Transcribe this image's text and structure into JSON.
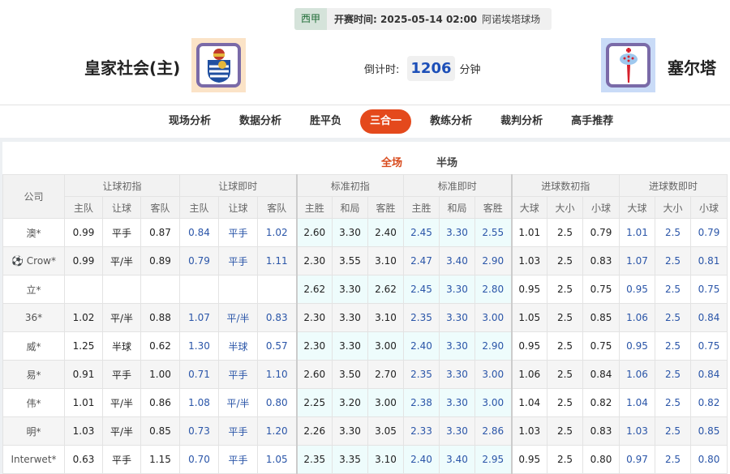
{
  "match": {
    "league": "西甲",
    "kickoff_label": "开赛时间:",
    "kickoff_time": "2025-05-14 02:00",
    "venue": "阿诺埃塔球场",
    "home": "皇家社会(主)",
    "away": "塞尔塔",
    "countdown_label": "倒计时:",
    "countdown_value": "1206",
    "countdown_unit": "分钟"
  },
  "nav": [
    {
      "label": "现场分析"
    },
    {
      "label": "数据分析"
    },
    {
      "label": "胜平负"
    },
    {
      "label": "三合一",
      "active": true
    },
    {
      "label": "教练分析"
    },
    {
      "label": "裁判分析"
    },
    {
      "label": "高手推荐"
    }
  ],
  "subtabs": [
    {
      "label": "全场",
      "active": true
    },
    {
      "label": "半场"
    }
  ],
  "table": {
    "company_header": "公司",
    "groups": [
      "让球初指",
      "让球即时",
      "标准初指",
      "标准即时",
      "进球数初指",
      "进球数即时"
    ],
    "subheaders": [
      "主队",
      "让球",
      "客队",
      "主队",
      "让球",
      "客队",
      "主胜",
      "和局",
      "客胜",
      "主胜",
      "和局",
      "客胜",
      "大球",
      "大小",
      "小球",
      "大球",
      "大小",
      "小球"
    ],
    "rows": [
      {
        "company": "澳*",
        "values": [
          "0.99",
          "平手",
          "0.87",
          "0.84",
          "平手",
          "1.02",
          "2.60",
          "3.30",
          "2.40",
          "2.45",
          "3.30",
          "2.55",
          "1.01",
          "2.5",
          "0.79",
          "1.01",
          "2.5",
          "0.79"
        ]
      },
      {
        "company": "Crow*",
        "icon": "soccer-ball-icon",
        "values": [
          "0.99",
          "平/半",
          "0.89",
          "0.79",
          "平手",
          "1.11",
          "2.30",
          "3.55",
          "3.10",
          "2.47",
          "3.40",
          "2.90",
          "1.03",
          "2.5",
          "0.83",
          "1.07",
          "2.5",
          "0.81"
        ]
      },
      {
        "company": "立*",
        "values": [
          "",
          "",
          "",
          "",
          "",
          "",
          "2.62",
          "3.30",
          "2.62",
          "2.45",
          "3.30",
          "2.80",
          "0.95",
          "2.5",
          "0.75",
          "0.95",
          "2.5",
          "0.75"
        ]
      },
      {
        "company": "36*",
        "values": [
          "1.02",
          "平/半",
          "0.88",
          "1.07",
          "平/半",
          "0.83",
          "2.30",
          "3.30",
          "3.10",
          "2.35",
          "3.30",
          "3.00",
          "1.05",
          "2.5",
          "0.85",
          "1.06",
          "2.5",
          "0.84"
        ]
      },
      {
        "company": "威*",
        "values": [
          "1.25",
          "半球",
          "0.62",
          "1.30",
          "半球",
          "0.57",
          "2.30",
          "3.30",
          "3.00",
          "2.40",
          "3.30",
          "2.90",
          "0.95",
          "2.5",
          "0.75",
          "0.95",
          "2.5",
          "0.75"
        ]
      },
      {
        "company": "易*",
        "values": [
          "0.91",
          "平手",
          "1.00",
          "0.71",
          "平手",
          "1.10",
          "2.60",
          "3.50",
          "2.70",
          "2.35",
          "3.30",
          "3.00",
          "1.06",
          "2.5",
          "0.84",
          "1.06",
          "2.5",
          "0.84"
        ]
      },
      {
        "company": "伟*",
        "values": [
          "1.01",
          "平/半",
          "0.86",
          "1.08",
          "平/半",
          "0.80",
          "2.25",
          "3.20",
          "3.00",
          "2.38",
          "3.30",
          "3.00",
          "1.04",
          "2.5",
          "0.82",
          "1.04",
          "2.5",
          "0.82"
        ]
      },
      {
        "company": "明*",
        "values": [
          "1.03",
          "平/半",
          "0.85",
          "0.73",
          "平手",
          "1.20",
          "2.26",
          "3.30",
          "3.05",
          "2.33",
          "3.30",
          "2.86",
          "1.03",
          "2.5",
          "0.83",
          "1.03",
          "2.5",
          "0.85"
        ]
      },
      {
        "company": "Interwet*",
        "values": [
          "0.63",
          "平手",
          "1.15",
          "0.70",
          "平手",
          "1.05",
          "2.35",
          "3.35",
          "3.10",
          "2.40",
          "3.40",
          "2.95",
          "0.95",
          "2.5",
          "0.80",
          "0.97",
          "2.5",
          "0.80"
        ]
      }
    ]
  },
  "colors": {
    "accent": "#e4491c",
    "live_odds": "#2a55a8",
    "standard_bg": "#eefcfc"
  }
}
